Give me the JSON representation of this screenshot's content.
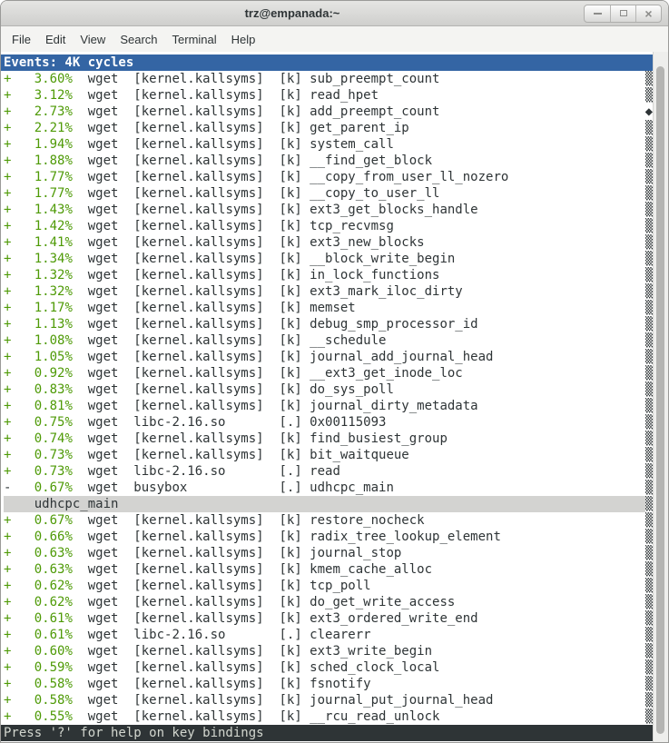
{
  "window": {
    "title": "trz@empanada:~",
    "controls": {
      "minimize": "minimize",
      "maximize": "maximize",
      "close": "close"
    }
  },
  "menu": {
    "items": [
      "File",
      "Edit",
      "View",
      "Search",
      "Terminal",
      "Help"
    ]
  },
  "colors": {
    "header_blue": "#3465a4",
    "overhead_green": "#4e9a06",
    "foreground": "#2e3436",
    "selection_gray": "#d3d3d1",
    "status_bg": "#2e3436",
    "status_fg": "#d3d7cf"
  },
  "terminal": {
    "header": "Events: 4K cycles",
    "status": "Press '?' for help on key bindings",
    "scroll": {
      "track_glyph": "▒",
      "position_glyph": "◆"
    },
    "rows": [
      {
        "kind": "entry",
        "prefix": "+",
        "pct": "3.60%",
        "comm": "wget",
        "dso": "[kernel.kallsyms]",
        "type": "[k]",
        "symbol": "sub_preempt_count"
      },
      {
        "kind": "entry",
        "prefix": "+",
        "pct": "3.12%",
        "comm": "wget",
        "dso": "[kernel.kallsyms]",
        "type": "[k]",
        "symbol": "read_hpet"
      },
      {
        "kind": "entry",
        "prefix": "+",
        "pct": "2.73%",
        "comm": "wget",
        "dso": "[kernel.kallsyms]",
        "type": "[k]",
        "symbol": "add_preempt_count",
        "marker": "diamond"
      },
      {
        "kind": "entry",
        "prefix": "+",
        "pct": "2.21%",
        "comm": "wget",
        "dso": "[kernel.kallsyms]",
        "type": "[k]",
        "symbol": "get_parent_ip"
      },
      {
        "kind": "entry",
        "prefix": "+",
        "pct": "1.94%",
        "comm": "wget",
        "dso": "[kernel.kallsyms]",
        "type": "[k]",
        "symbol": "system_call"
      },
      {
        "kind": "entry",
        "prefix": "+",
        "pct": "1.88%",
        "comm": "wget",
        "dso": "[kernel.kallsyms]",
        "type": "[k]",
        "symbol": "__find_get_block"
      },
      {
        "kind": "entry",
        "prefix": "+",
        "pct": "1.77%",
        "comm": "wget",
        "dso": "[kernel.kallsyms]",
        "type": "[k]",
        "symbol": "__copy_from_user_ll_nozero"
      },
      {
        "kind": "entry",
        "prefix": "+",
        "pct": "1.77%",
        "comm": "wget",
        "dso": "[kernel.kallsyms]",
        "type": "[k]",
        "symbol": "__copy_to_user_ll"
      },
      {
        "kind": "entry",
        "prefix": "+",
        "pct": "1.43%",
        "comm": "wget",
        "dso": "[kernel.kallsyms]",
        "type": "[k]",
        "symbol": "ext3_get_blocks_handle"
      },
      {
        "kind": "entry",
        "prefix": "+",
        "pct": "1.42%",
        "comm": "wget",
        "dso": "[kernel.kallsyms]",
        "type": "[k]",
        "symbol": "tcp_recvmsg"
      },
      {
        "kind": "entry",
        "prefix": "+",
        "pct": "1.41%",
        "comm": "wget",
        "dso": "[kernel.kallsyms]",
        "type": "[k]",
        "symbol": "ext3_new_blocks"
      },
      {
        "kind": "entry",
        "prefix": "+",
        "pct": "1.34%",
        "comm": "wget",
        "dso": "[kernel.kallsyms]",
        "type": "[k]",
        "symbol": "__block_write_begin"
      },
      {
        "kind": "entry",
        "prefix": "+",
        "pct": "1.32%",
        "comm": "wget",
        "dso": "[kernel.kallsyms]",
        "type": "[k]",
        "symbol": "in_lock_functions"
      },
      {
        "kind": "entry",
        "prefix": "+",
        "pct": "1.32%",
        "comm": "wget",
        "dso": "[kernel.kallsyms]",
        "type": "[k]",
        "symbol": "ext3_mark_iloc_dirty"
      },
      {
        "kind": "entry",
        "prefix": "+",
        "pct": "1.17%",
        "comm": "wget",
        "dso": "[kernel.kallsyms]",
        "type": "[k]",
        "symbol": "memset"
      },
      {
        "kind": "entry",
        "prefix": "+",
        "pct": "1.13%",
        "comm": "wget",
        "dso": "[kernel.kallsyms]",
        "type": "[k]",
        "symbol": "debug_smp_processor_id"
      },
      {
        "kind": "entry",
        "prefix": "+",
        "pct": "1.08%",
        "comm": "wget",
        "dso": "[kernel.kallsyms]",
        "type": "[k]",
        "symbol": "__schedule"
      },
      {
        "kind": "entry",
        "prefix": "+",
        "pct": "1.05%",
        "comm": "wget",
        "dso": "[kernel.kallsyms]",
        "type": "[k]",
        "symbol": "journal_add_journal_head"
      },
      {
        "kind": "entry",
        "prefix": "+",
        "pct": "0.92%",
        "comm": "wget",
        "dso": "[kernel.kallsyms]",
        "type": "[k]",
        "symbol": "__ext3_get_inode_loc"
      },
      {
        "kind": "entry",
        "prefix": "+",
        "pct": "0.83%",
        "comm": "wget",
        "dso": "[kernel.kallsyms]",
        "type": "[k]",
        "symbol": "do_sys_poll"
      },
      {
        "kind": "entry",
        "prefix": "+",
        "pct": "0.81%",
        "comm": "wget",
        "dso": "[kernel.kallsyms]",
        "type": "[k]",
        "symbol": "journal_dirty_metadata"
      },
      {
        "kind": "entry",
        "prefix": "+",
        "pct": "0.75%",
        "comm": "wget",
        "dso": "libc-2.16.so",
        "type": "[.]",
        "symbol": "0x00115093"
      },
      {
        "kind": "entry",
        "prefix": "+",
        "pct": "0.74%",
        "comm": "wget",
        "dso": "[kernel.kallsyms]",
        "type": "[k]",
        "symbol": "find_busiest_group"
      },
      {
        "kind": "entry",
        "prefix": "+",
        "pct": "0.73%",
        "comm": "wget",
        "dso": "[kernel.kallsyms]",
        "type": "[k]",
        "symbol": "bit_waitqueue"
      },
      {
        "kind": "entry",
        "prefix": "+",
        "pct": "0.73%",
        "comm": "wget",
        "dso": "libc-2.16.so",
        "type": "[.]",
        "symbol": "read"
      },
      {
        "kind": "entry",
        "prefix": "-",
        "pct": "0.67%",
        "comm": "wget",
        "dso": "busybox",
        "type": "[.]",
        "symbol": "udhcpc_main"
      },
      {
        "kind": "selected",
        "label": "udhcpc_main"
      },
      {
        "kind": "entry",
        "prefix": "+",
        "pct": "0.67%",
        "comm": "wget",
        "dso": "[kernel.kallsyms]",
        "type": "[k]",
        "symbol": "restore_nocheck"
      },
      {
        "kind": "entry",
        "prefix": "+",
        "pct": "0.66%",
        "comm": "wget",
        "dso": "[kernel.kallsyms]",
        "type": "[k]",
        "symbol": "radix_tree_lookup_element"
      },
      {
        "kind": "entry",
        "prefix": "+",
        "pct": "0.63%",
        "comm": "wget",
        "dso": "[kernel.kallsyms]",
        "type": "[k]",
        "symbol": "journal_stop"
      },
      {
        "kind": "entry",
        "prefix": "+",
        "pct": "0.63%",
        "comm": "wget",
        "dso": "[kernel.kallsyms]",
        "type": "[k]",
        "symbol": "kmem_cache_alloc"
      },
      {
        "kind": "entry",
        "prefix": "+",
        "pct": "0.62%",
        "comm": "wget",
        "dso": "[kernel.kallsyms]",
        "type": "[k]",
        "symbol": "tcp_poll"
      },
      {
        "kind": "entry",
        "prefix": "+",
        "pct": "0.62%",
        "comm": "wget",
        "dso": "[kernel.kallsyms]",
        "type": "[k]",
        "symbol": "do_get_write_access"
      },
      {
        "kind": "entry",
        "prefix": "+",
        "pct": "0.61%",
        "comm": "wget",
        "dso": "[kernel.kallsyms]",
        "type": "[k]",
        "symbol": "ext3_ordered_write_end"
      },
      {
        "kind": "entry",
        "prefix": "+",
        "pct": "0.61%",
        "comm": "wget",
        "dso": "libc-2.16.so",
        "type": "[.]",
        "symbol": "clearerr"
      },
      {
        "kind": "entry",
        "prefix": "+",
        "pct": "0.60%",
        "comm": "wget",
        "dso": "[kernel.kallsyms]",
        "type": "[k]",
        "symbol": "ext3_write_begin"
      },
      {
        "kind": "entry",
        "prefix": "+",
        "pct": "0.59%",
        "comm": "wget",
        "dso": "[kernel.kallsyms]",
        "type": "[k]",
        "symbol": "sched_clock_local"
      },
      {
        "kind": "entry",
        "prefix": "+",
        "pct": "0.58%",
        "comm": "wget",
        "dso": "[kernel.kallsyms]",
        "type": "[k]",
        "symbol": "fsnotify"
      },
      {
        "kind": "entry",
        "prefix": "+",
        "pct": "0.58%",
        "comm": "wget",
        "dso": "[kernel.kallsyms]",
        "type": "[k]",
        "symbol": "journal_put_journal_head"
      },
      {
        "kind": "entry",
        "prefix": "+",
        "pct": "0.55%",
        "comm": "wget",
        "dso": "[kernel.kallsyms]",
        "type": "[k]",
        "symbol": "__rcu_read_unlock"
      }
    ]
  }
}
